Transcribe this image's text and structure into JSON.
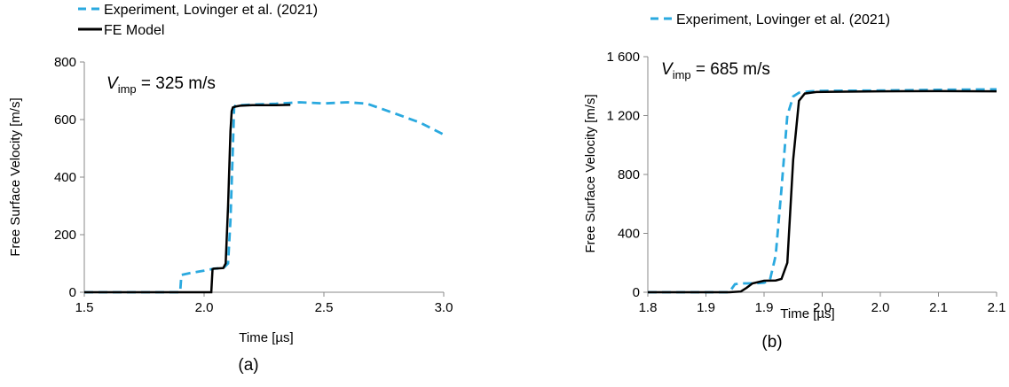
{
  "panels": [
    {
      "id": "a",
      "caption": "(a)",
      "annotation": "V",
      "annotation_sub": "imp",
      "annotation_rest": " = 325 m/s"
    },
    {
      "id": "b",
      "caption": "(b)",
      "annotation": "V",
      "annotation_sub": "imp",
      "annotation_rest": " = 685 m/s"
    }
  ],
  "chart_data": [
    {
      "type": "line",
      "xlabel": "Time [µs]",
      "ylabel": "Free Surface Velocity [m/s]",
      "xlim": [
        1.5,
        3.0
      ],
      "ylim": [
        0,
        800
      ],
      "xticks": [
        "1.5",
        "2.0",
        "2.5",
        "3.0"
      ],
      "yticks": [
        "0",
        "200",
        "400",
        "600",
        "800"
      ],
      "xtick_values": [
        1.5,
        2.0,
        2.5,
        3.0
      ],
      "ytick_values": [
        0,
        200,
        400,
        600,
        800
      ],
      "grid": false,
      "legend_position": "top-left",
      "series": [
        {
          "name": "Experiment, Lovinger et al. (2021)",
          "color": "#2aa9df",
          "style": "dashed",
          "x": [
            1.5,
            1.9,
            1.905,
            1.95,
            2.0,
            2.03,
            2.04,
            2.08,
            2.1,
            2.11,
            2.12,
            2.125,
            2.13,
            2.15,
            2.2,
            2.3,
            2.4,
            2.5,
            2.6,
            2.68,
            2.8,
            2.9,
            3.0
          ],
          "y": [
            0,
            0,
            60,
            68,
            75,
            80,
            82,
            84,
            100,
            250,
            500,
            640,
            648,
            650,
            652,
            655,
            660,
            656,
            660,
            655,
            620,
            590,
            548
          ]
        },
        {
          "name": "FE Model",
          "color": "#000000",
          "style": "solid",
          "x": [
            1.5,
            2.0,
            2.03,
            2.035,
            2.04,
            2.08,
            2.09,
            2.1,
            2.11,
            2.115,
            2.12,
            2.13,
            2.15,
            2.2,
            2.3,
            2.36
          ],
          "y": [
            0,
            0,
            0,
            80,
            82,
            84,
            100,
            300,
            560,
            630,
            642,
            645,
            648,
            650,
            650,
            651
          ]
        }
      ]
    },
    {
      "type": "line",
      "xlabel": "Time [µs]",
      "ylabel": "Free Surface Velocity [m/s]",
      "xlim": [
        1.8,
        2.1
      ],
      "ylim": [
        0,
        1600
      ],
      "xticks": [
        "1.8",
        "1.9",
        "1.9",
        "2.0",
        "2.0",
        "2.1",
        "2.1"
      ],
      "yticks": [
        "0",
        "400",
        "800",
        "1 200",
        "1 600"
      ],
      "xtick_values": [
        1.8,
        1.85,
        1.9,
        1.95,
        2.0,
        2.05,
        2.1
      ],
      "ytick_values": [
        0,
        400,
        800,
        1200,
        1600
      ],
      "grid": false,
      "legend_position": "top",
      "series": [
        {
          "name": "Experiment, Lovinger et al. (2021)",
          "color": "#2aa9df",
          "style": "dashed",
          "x": [
            1.8,
            1.87,
            1.875,
            1.88,
            1.885,
            1.895,
            1.9,
            1.905,
            1.91,
            1.915,
            1.92,
            1.925,
            1.93,
            1.94,
            1.95,
            2.0,
            2.05,
            2.1
          ],
          "y": [
            0,
            0,
            55,
            60,
            60,
            62,
            65,
            80,
            250,
            700,
            1200,
            1330,
            1355,
            1365,
            1368,
            1370,
            1375,
            1378
          ]
        },
        {
          "name": "FE Model",
          "color": "#000000",
          "style": "solid",
          "x": [
            1.8,
            1.87,
            1.88,
            1.885,
            1.89,
            1.9,
            1.91,
            1.915,
            1.92,
            1.925,
            1.93,
            1.935,
            1.945,
            1.96,
            2.0,
            2.05,
            2.1
          ],
          "y": [
            0,
            0,
            5,
            30,
            60,
            78,
            80,
            90,
            200,
            900,
            1300,
            1350,
            1360,
            1362,
            1365,
            1366,
            1365
          ]
        }
      ]
    }
  ]
}
